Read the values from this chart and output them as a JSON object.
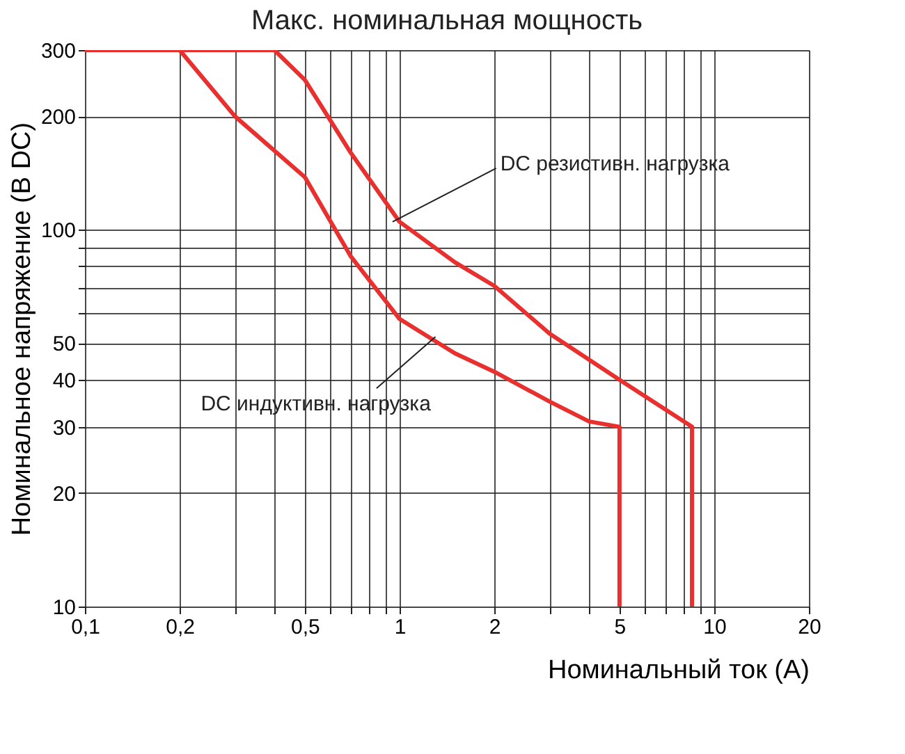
{
  "chart_data": {
    "type": "line",
    "title": "Макс. номинальная мощность",
    "xlabel": "Номинальный ток (А)",
    "ylabel": "Номинальное напряжение (В DC)",
    "log": "xy",
    "grid": true,
    "marker": "none",
    "line_style": "solid",
    "xlim": [
      0.1,
      20
    ],
    "ylim": [
      10,
      300
    ],
    "xticks": [
      {
        "value": 0.1,
        "label": "0,1"
      },
      {
        "value": 0.2,
        "label": "0,2"
      },
      {
        "value": 0.3,
        "label": null
      },
      {
        "value": 0.4,
        "label": null
      },
      {
        "value": 0.5,
        "label": "0,5"
      },
      {
        "value": 0.6,
        "label": null
      },
      {
        "value": 0.7,
        "label": null
      },
      {
        "value": 0.8,
        "label": null
      },
      {
        "value": 0.9,
        "label": null
      },
      1,
      2,
      {
        "value": 3,
        "label": null
      },
      {
        "value": 4,
        "label": null
      },
      5,
      {
        "value": 6,
        "label": null
      },
      {
        "value": 7,
        "label": null
      },
      {
        "value": 8,
        "label": null
      },
      {
        "value": 9,
        "label": null
      },
      10,
      20
    ],
    "yticks": [
      10,
      20,
      30,
      40,
      50,
      {
        "value": 60,
        "label": null
      },
      {
        "value": 70,
        "label": null
      },
      {
        "value": 80,
        "label": null
      },
      {
        "value": 90,
        "label": null
      },
      100,
      200,
      300
    ],
    "series": [
      {
        "color": "#e8312f",
        "x": [
          0.1,
          0.4,
          0.5,
          0.7,
          1,
          1.5,
          2,
          3,
          5,
          8.5,
          8.5
        ],
        "values": [
          300,
          300,
          250,
          160,
          105,
          82,
          71,
          53,
          40,
          30,
          10
        ]
      },
      {
        "color": "#e8312f",
        "x": [
          0.1,
          0.2,
          0.3,
          0.5,
          0.7,
          1,
          1.5,
          2,
          3,
          4,
          5,
          5
        ],
        "values": [
          300,
          300,
          200,
          138,
          85,
          58,
          47,
          42,
          35,
          31,
          30,
          10
        ]
      }
    ],
    "annotations": [
      {
        "text": "DC резистивн. нагрузка",
        "x": 0.95,
        "y": 105
      },
      {
        "text": "DC индуктивн. нагрузка",
        "x": 1.3,
        "y": 52
      }
    ]
  }
}
